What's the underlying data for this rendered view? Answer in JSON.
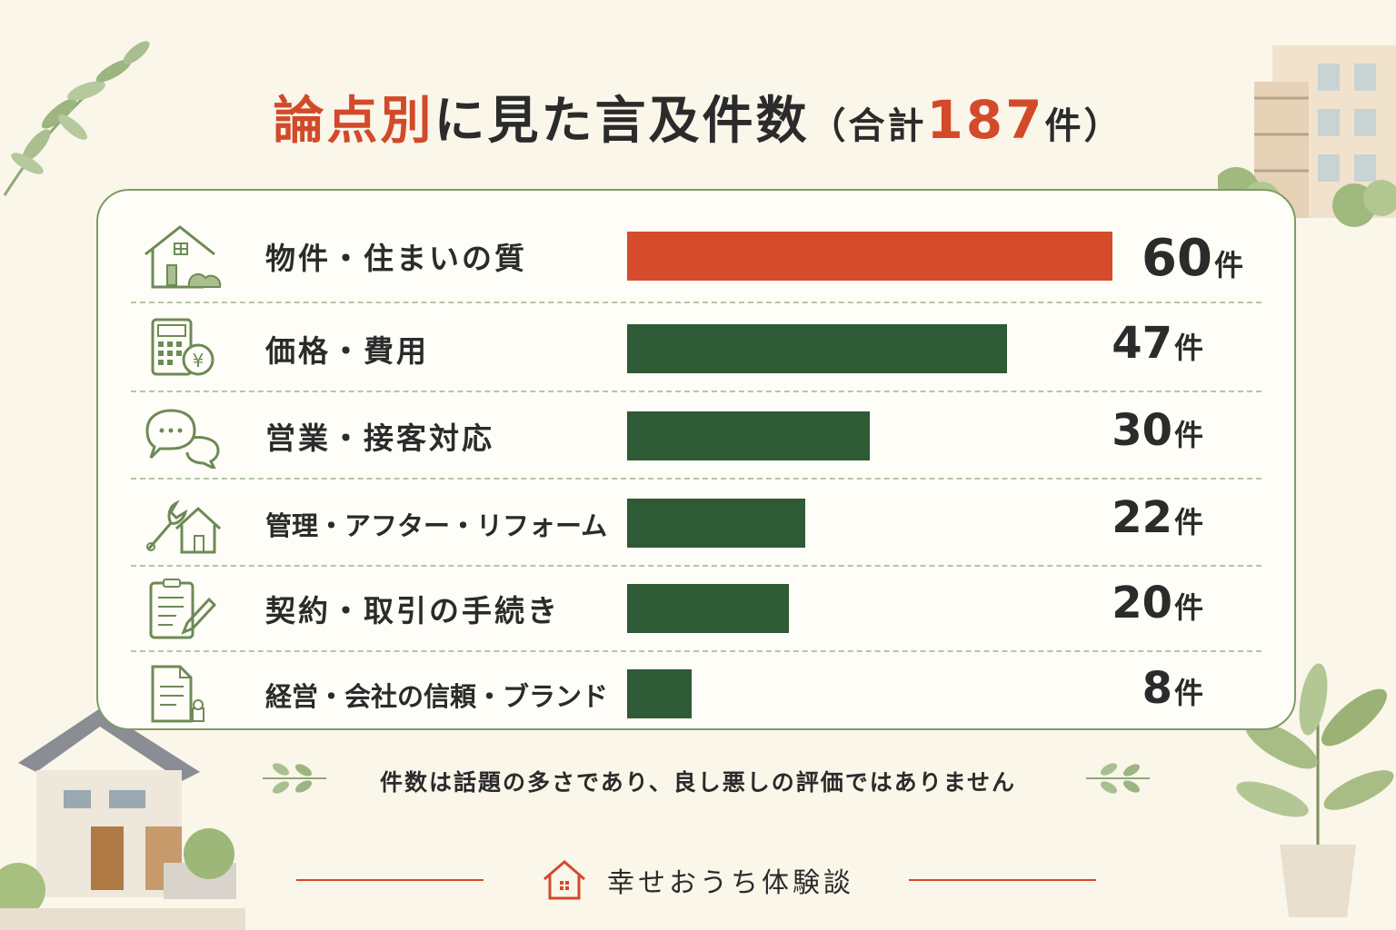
{
  "title": {
    "prefix": "論点別",
    "main": "に見た言及件数",
    "paren_open": "（合計",
    "total": "187",
    "unit": "件",
    "paren_close": "）"
  },
  "chart_data": {
    "type": "bar",
    "orientation": "horizontal",
    "categories": [
      "物件・住まいの質",
      "価格・費用",
      "営業・接客対応",
      "管理・アフター・リフォーム",
      "契約・取引の手続き",
      "経営・会社の信頼・ブランド"
    ],
    "values": [
      60,
      47,
      30,
      22,
      20,
      8
    ],
    "value_unit": "件",
    "total": 187,
    "colors": [
      "#d64b2b",
      "#2e5a35",
      "#2e5a35",
      "#2e5a35",
      "#2e5a35",
      "#2e5a35"
    ],
    "icons": [
      "house-icon",
      "calculator-yen-icon",
      "speech-bubbles-icon",
      "wrench-house-icon",
      "clipboard-pen-icon",
      "document-stamp-icon"
    ]
  },
  "note": "件数は話題の多さであり、良し悪しの評価ではありません",
  "brand": {
    "name": "幸せおうち体験談",
    "icon": "house-logo-icon",
    "color": "#d24a2a"
  },
  "colors": {
    "background": "#faf6ea",
    "panel_border": "#7e9b68",
    "accent": "#d24a2a",
    "bar_green": "#2e5a35"
  }
}
